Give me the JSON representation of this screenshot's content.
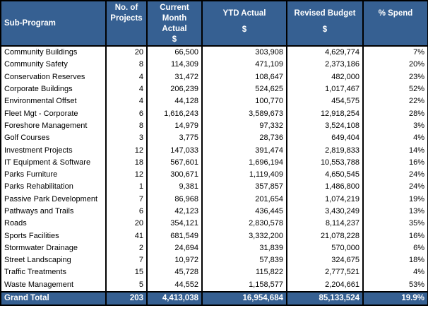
{
  "header": {
    "sub_program": "Sub-Program",
    "projects_line1": "No. of",
    "projects_line2": "Projects",
    "current_line1": "Current Month",
    "current_line2": "Actual",
    "current_unit": "$",
    "ytd": "YTD Actual",
    "ytd_unit": "$",
    "budget": "Revised Budget",
    "budget_unit": "$",
    "spend": "% Spend"
  },
  "rows": [
    {
      "name": "Community Buildings",
      "projects": "20",
      "current": "66,500",
      "ytd": "303,908",
      "budget": "4,629,774",
      "spend": "7%"
    },
    {
      "name": "Community Safety",
      "projects": "8",
      "current": "114,309",
      "ytd": "471,109",
      "budget": "2,373,186",
      "spend": "20%"
    },
    {
      "name": "Conservation Reserves",
      "projects": "4",
      "current": "31,472",
      "ytd": "108,647",
      "budget": "482,000",
      "spend": "23%"
    },
    {
      "name": "Corporate Buildings",
      "projects": "4",
      "current": "206,239",
      "ytd": "524,625",
      "budget": "1,017,467",
      "spend": "52%"
    },
    {
      "name": "Environmental Offset",
      "projects": "4",
      "current": "44,128",
      "ytd": "100,770",
      "budget": "454,575",
      "spend": "22%"
    },
    {
      "name": "Fleet Mgt - Corporate",
      "projects": "6",
      "current": "1,616,243",
      "ytd": "3,589,673",
      "budget": "12,918,254",
      "spend": "28%"
    },
    {
      "name": "Foreshore Management",
      "projects": "8",
      "current": "14,979",
      "ytd": "97,332",
      "budget": "3,524,108",
      "spend": "3%"
    },
    {
      "name": "Golf Courses",
      "projects": "3",
      "current": "3,775",
      "ytd": "28,736",
      "budget": "649,404",
      "spend": "4%"
    },
    {
      "name": "Investment Projects",
      "projects": "12",
      "current": "147,033",
      "ytd": "391,474",
      "budget": "2,819,833",
      "spend": "14%"
    },
    {
      "name": "IT Equipment & Software",
      "projects": "18",
      "current": "567,601",
      "ytd": "1,696,194",
      "budget": "10,553,788",
      "spend": "16%"
    },
    {
      "name": "Parks Furniture",
      "projects": "12",
      "current": "300,671",
      "ytd": "1,119,409",
      "budget": "4,650,545",
      "spend": "24%"
    },
    {
      "name": "Parks Rehabilitation",
      "projects": "1",
      "current": "9,381",
      "ytd": "357,857",
      "budget": "1,486,800",
      "spend": "24%"
    },
    {
      "name": "Passive Park Development",
      "projects": "7",
      "current": "86,968",
      "ytd": "201,654",
      "budget": "1,074,219",
      "spend": "19%"
    },
    {
      "name": "Pathways and Trails",
      "projects": "6",
      "current": "42,123",
      "ytd": "436,445",
      "budget": "3,430,249",
      "spend": "13%"
    },
    {
      "name": "Roads",
      "projects": "20",
      "current": "354,121",
      "ytd": "2,830,578",
      "budget": "8,114,237",
      "spend": "35%"
    },
    {
      "name": "Sports Facilities",
      "projects": "41",
      "current": "681,549",
      "ytd": "3,332,200",
      "budget": "21,078,228",
      "spend": "16%"
    },
    {
      "name": "Stormwater Drainage",
      "projects": "2",
      "current": "24,694",
      "ytd": "31,839",
      "budget": "570,000",
      "spend": "6%"
    },
    {
      "name": "Street Landscaping",
      "projects": "7",
      "current": "10,972",
      "ytd": "57,839",
      "budget": "324,675",
      "spend": "18%"
    },
    {
      "name": "Traffic Treatments",
      "projects": "15",
      "current": "45,728",
      "ytd": "115,822",
      "budget": "2,777,521",
      "spend": "4%"
    },
    {
      "name": "Waste Management",
      "projects": "5",
      "current": "44,552",
      "ytd": "1,158,577",
      "budget": "2,204,661",
      "spend": "53%"
    }
  ],
  "total": {
    "name": "Grand Total",
    "projects": "203",
    "current": "4,413,038",
    "ytd": "16,954,684",
    "budget": "85,133,524",
    "spend": "19.9%"
  },
  "colors": {
    "header_bg": "#366092",
    "header_text": "#ffffff"
  }
}
